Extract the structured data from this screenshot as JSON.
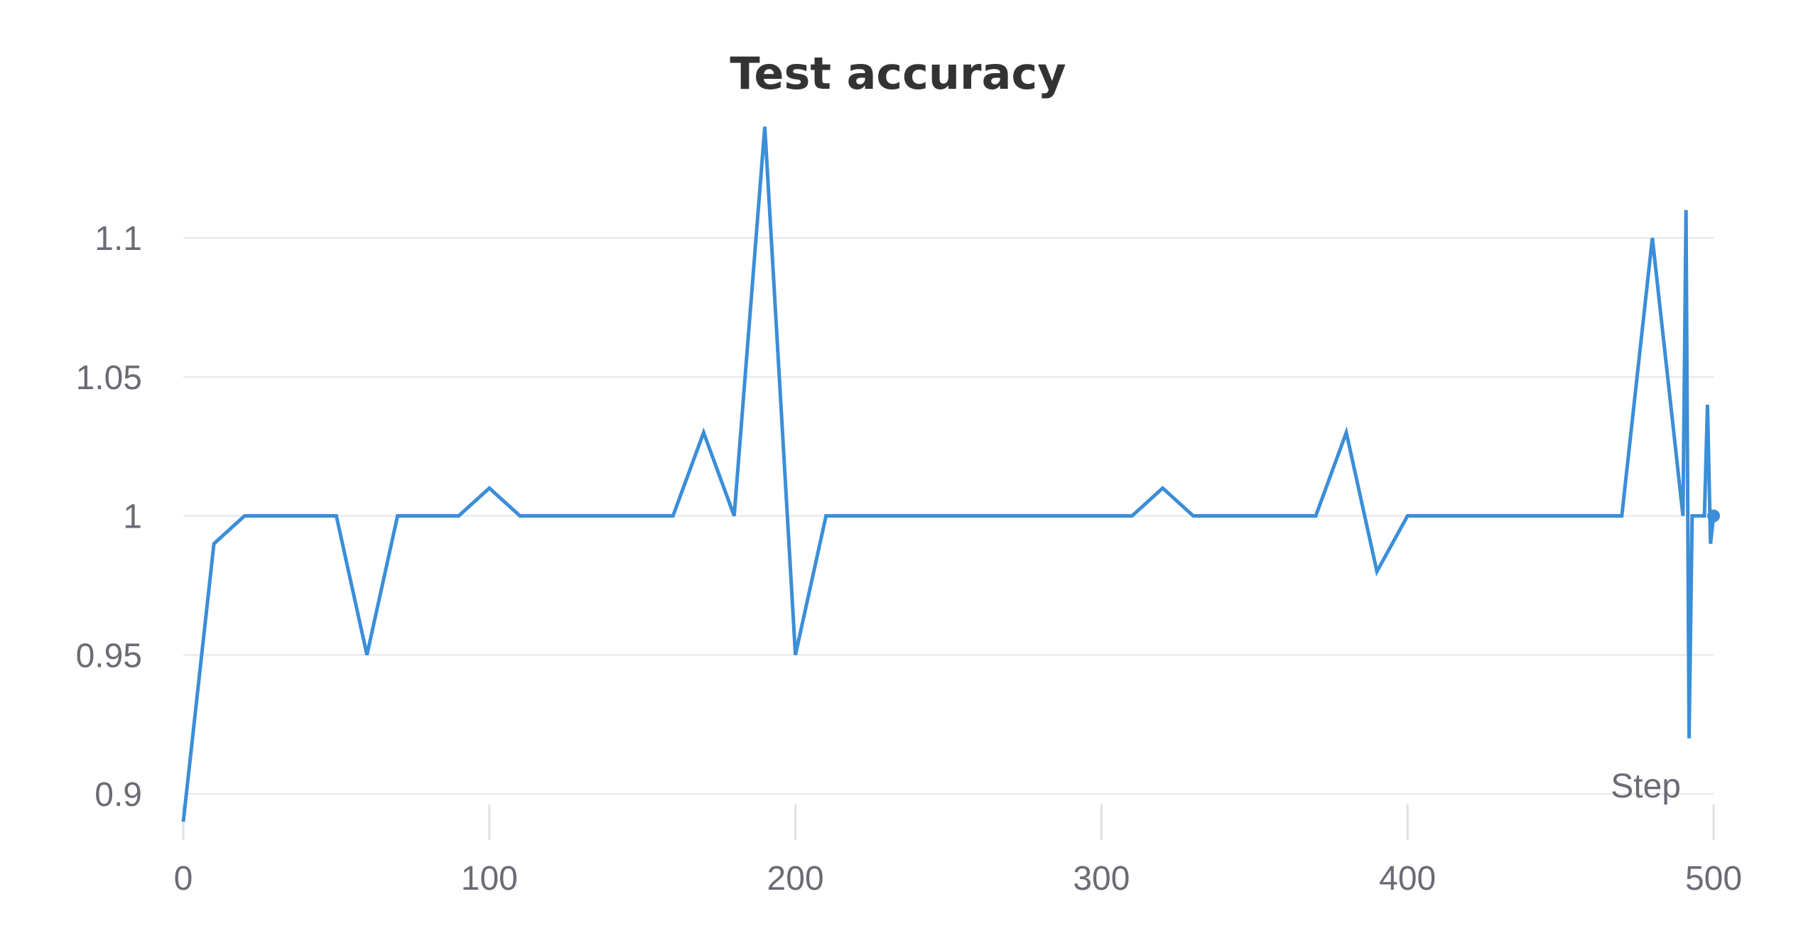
{
  "chart_data": {
    "type": "line",
    "title": "Test accuracy",
    "xlabel": "Step",
    "ylabel": "",
    "xlim": [
      0,
      500
    ],
    "ylim": [
      0.89,
      1.14
    ],
    "x_ticks": [
      0,
      100,
      200,
      300,
      400,
      500
    ],
    "x_tick_labels": [
      "0",
      "100",
      "200",
      "300",
      "400",
      "500"
    ],
    "y_ticks": [
      0.9,
      0.95,
      1.0,
      1.05,
      1.1
    ],
    "y_tick_labels": [
      "0.9",
      "0.95",
      "1",
      "1.05",
      "1.1"
    ],
    "grid": true,
    "legend": "none",
    "series": [
      {
        "color": "#3b8ed8",
        "x": [
          0,
          10,
          20,
          30,
          40,
          50,
          60,
          70,
          80,
          90,
          100,
          110,
          120,
          130,
          140,
          150,
          160,
          170,
          180,
          190,
          200,
          210,
          220,
          230,
          240,
          250,
          260,
          270,
          280,
          290,
          300,
          310,
          320,
          330,
          340,
          350,
          360,
          370,
          380,
          390,
          400,
          410,
          420,
          430,
          440,
          450,
          460,
          470,
          480,
          490,
          491,
          492,
          493,
          497,
          498,
          499,
          500
        ],
        "values": [
          0.89,
          0.99,
          1.0,
          1.0,
          1.0,
          1.0,
          0.95,
          1.0,
          1.0,
          1.0,
          1.01,
          1.0,
          1.0,
          1.0,
          1.0,
          1.0,
          1.0,
          1.03,
          1.0,
          1.14,
          0.95,
          1.0,
          1.0,
          1.0,
          1.0,
          1.0,
          1.0,
          1.0,
          1.0,
          1.0,
          1.0,
          1.0,
          1.01,
          1.0,
          1.0,
          1.0,
          1.0,
          1.0,
          1.03,
          0.98,
          1.0,
          1.0,
          1.0,
          1.0,
          1.0,
          1.0,
          1.0,
          1.0,
          1.1,
          1.0,
          1.11,
          0.92,
          1.0,
          1.0,
          1.04,
          0.99,
          1.0
        ]
      }
    ]
  }
}
